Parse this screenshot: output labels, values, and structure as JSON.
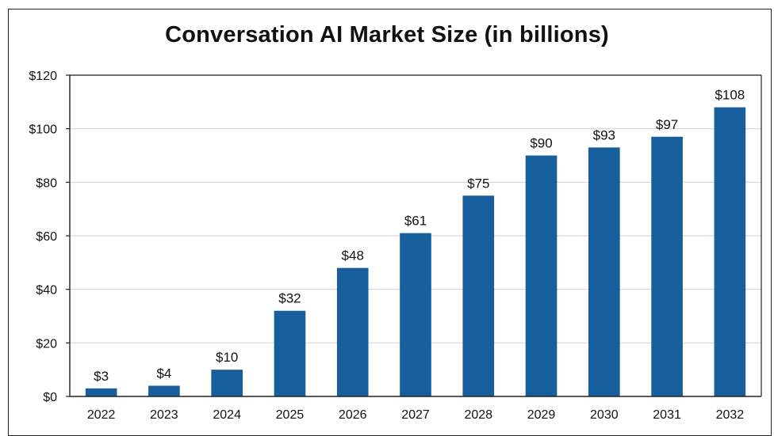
{
  "chart_data": {
    "type": "bar",
    "title": "Conversation AI  Market Size (in billions)",
    "xlabel": "",
    "ylabel": "",
    "categories": [
      "2022",
      "2023",
      "2024",
      "2025",
      "2026",
      "2027",
      "2028",
      "2029",
      "2030",
      "2031",
      "2032"
    ],
    "values": [
      3,
      4,
      10,
      32,
      48,
      61,
      75,
      90,
      93,
      97,
      108
    ],
    "data_labels": [
      "$3",
      "$4",
      "$10",
      "$32",
      "$48",
      "$61",
      "$75",
      "$90",
      "$93",
      "$97",
      "$108"
    ],
    "y_ticks": [
      0,
      20,
      40,
      60,
      80,
      100,
      120
    ],
    "y_tick_labels": [
      "$0",
      "$20",
      "$40",
      "$60",
      "$80",
      "$100",
      "$120"
    ],
    "ylim": [
      0,
      120
    ],
    "grid": true,
    "legend": "none",
    "colors": {
      "bar": "#175f9c",
      "grid": "#d6d6d6",
      "axis": "#222222",
      "text": "#111111"
    }
  }
}
